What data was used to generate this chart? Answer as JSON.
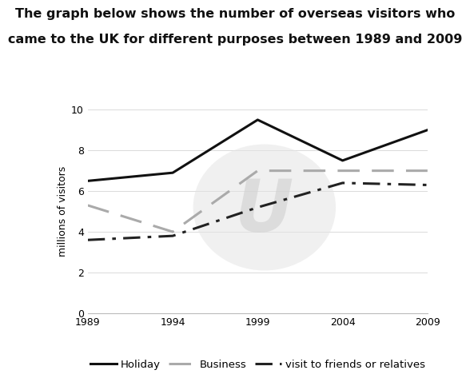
{
  "title_line1": "The graph below shows the number of overseas visitors who",
  "title_line2": "came to the UK for different purposes between 1989 and 2009",
  "years": [
    1989,
    1994,
    1999,
    2004,
    2009
  ],
  "holiday": [
    6.5,
    6.9,
    9.5,
    7.5,
    9.0
  ],
  "business": [
    5.3,
    4.0,
    7.0,
    7.0,
    7.0
  ],
  "friends": [
    3.6,
    3.8,
    5.2,
    6.4,
    6.3
  ],
  "ylabel": "millions of visitors",
  "ylim": [
    0,
    10
  ],
  "yticks": [
    0,
    2,
    4,
    6,
    8,
    10
  ],
  "xticks": [
    1989,
    1994,
    1999,
    2004,
    2009
  ],
  "holiday_color": "#111111",
  "business_color": "#aaaaaa",
  "friends_color": "#222222",
  "background_color": "#ffffff",
  "title_fontsize": 11.5,
  "axis_fontsize": 9,
  "legend_fontsize": 9.5
}
